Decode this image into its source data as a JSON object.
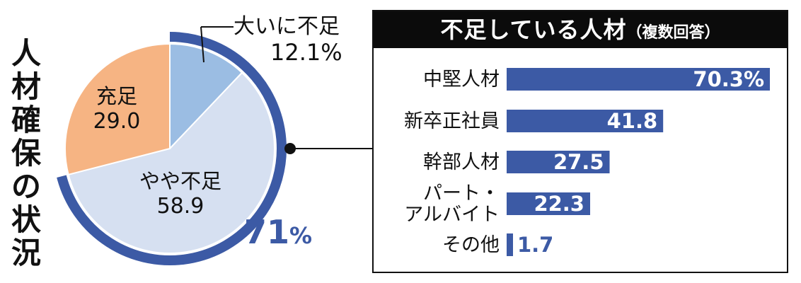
{
  "title": "人材確保の状況",
  "chart_data": [
    {
      "type": "pie",
      "slices": [
        {
          "label": "大いに不足",
          "value": 12.1,
          "value_text": "12.1%",
          "color": "#9bbde3"
        },
        {
          "label": "やや不足",
          "value": 58.9,
          "value_text": "58.9",
          "color": "#d6e0f1"
        },
        {
          "label": "充足",
          "value": 29.0,
          "value_text": "29.0",
          "color": "#f6b483"
        }
      ],
      "total": {
        "value": "71",
        "unit": "%",
        "color": "#3c5aa5"
      }
    },
    {
      "type": "bar",
      "title": "不足している人材",
      "subtitle": "（複数回答）",
      "categories": [
        "中堅人材",
        "新卒正社員",
        "幹部人材",
        "パート・アルバイト",
        "その他"
      ],
      "category_lines": [
        [
          "中堅人材"
        ],
        [
          "新卒正社員"
        ],
        [
          "幹部人材"
        ],
        [
          "パート・",
          "アルバイト"
        ],
        [
          "その他"
        ]
      ],
      "values": [
        70.3,
        41.8,
        27.5,
        22.3,
        1.7
      ],
      "value_labels": [
        "70.3%",
        "41.8",
        "27.5",
        "22.3",
        "1.7"
      ],
      "bar_color": "#3c5aa5"
    }
  ]
}
